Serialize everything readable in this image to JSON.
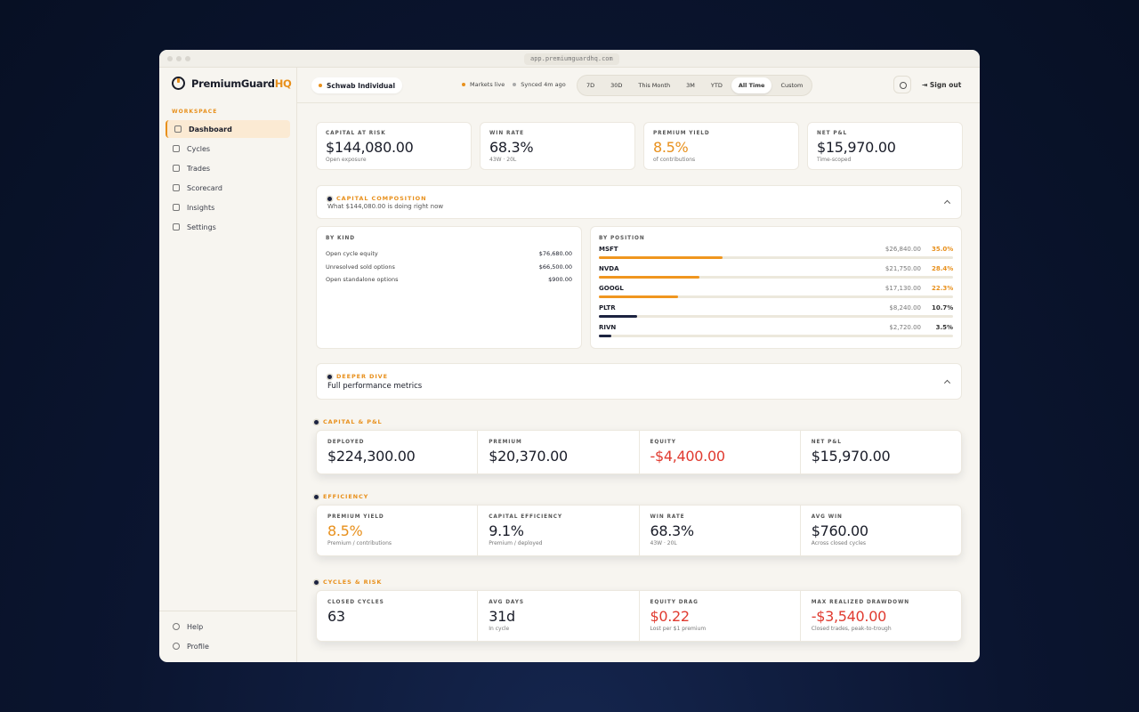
{
  "browser": {
    "url": "app.premiumguardhq.com"
  },
  "brand": {
    "name": "PremiumGuard",
    "suffix": "HQ"
  },
  "sidebar": {
    "section": "WORKSPACE",
    "nav": [
      "Dashboard",
      "Cycles",
      "Trades",
      "Scorecard",
      "Insights",
      "Settings"
    ],
    "active": "Dashboard",
    "footer": [
      "Help",
      "Profile"
    ]
  },
  "topbar": {
    "account": "Schwab Individual",
    "status": "Markets live",
    "synced": "Synced 4m ago",
    "ranges": [
      "7D",
      "30D",
      "This Month",
      "3M",
      "YTD",
      "All Time",
      "Custom"
    ],
    "active_range": "All Time",
    "sign_out": "Sign out"
  },
  "kpis": [
    {
      "label": "CAPITAL AT RISK",
      "value": "$144,080.00",
      "sub": "Open exposure",
      "color": "#1a1d29"
    },
    {
      "label": "WIN RATE",
      "value": "68.3%",
      "sub": "43W · 20L",
      "color": "#1a1d29"
    },
    {
      "label": "PREMIUM YIELD",
      "value": "8.5%",
      "sub": "of contributions",
      "color": "#e8901c"
    },
    {
      "label": "NET P&L",
      "value": "$15,970.00",
      "sub": "Time-scoped",
      "color": "#1a1d29"
    }
  ],
  "composition": {
    "title": "CAPITAL COMPOSITION",
    "subtitle": "What $144,080.00 is doing right now",
    "by_kind": {
      "title": "BY KIND",
      "rows": [
        {
          "label": "Open cycle equity",
          "amount": "$76,680.00"
        },
        {
          "label": "Unresolved sold options",
          "amount": "$66,500.00"
        },
        {
          "label": "Open standalone options",
          "amount": "$900.00"
        }
      ]
    },
    "by_position": {
      "title": "BY POSITION",
      "rows": [
        {
          "ticker": "MSFT",
          "amount": "$26,840.00",
          "pct": 35.0,
          "pct_label": "35.0%",
          "color": "#f0961f"
        },
        {
          "ticker": "NVDA",
          "amount": "$21,750.00",
          "pct": 28.4,
          "pct_label": "28.4%",
          "color": "#f0961f"
        },
        {
          "ticker": "GOOGL",
          "amount": "$17,130.00",
          "pct": 22.3,
          "pct_label": "22.3%",
          "color": "#f0961f"
        },
        {
          "ticker": "PLTR",
          "amount": "$8,240.00",
          "pct": 10.7,
          "pct_label": "10.7%",
          "color": "#1c2340"
        },
        {
          "ticker": "RIVN",
          "amount": "$2,720.00",
          "pct": 3.5,
          "pct_label": "3.5%",
          "color": "#1c2340"
        }
      ]
    }
  },
  "deeper": {
    "title": "DEEPER DIVE",
    "subtitle": "Full performance metrics"
  },
  "sections": [
    {
      "title": "CAPITAL & P&L",
      "cards": [
        {
          "label": "DEPLOYED",
          "value": "$224,300.00",
          "color": "#1a1d29"
        },
        {
          "label": "PREMIUM",
          "value": "$20,370.00",
          "color": "#1a1d29"
        },
        {
          "label": "EQUITY",
          "value": "-$4,400.00",
          "color": "#e03a2f"
        },
        {
          "label": "NET P&L",
          "value": "$15,970.00",
          "color": "#1a1d29"
        }
      ]
    },
    {
      "title": "EFFICIENCY",
      "cards": [
        {
          "label": "PREMIUM YIELD",
          "value": "8.5%",
          "sub": "Premium / contributions",
          "color": "#e8901c"
        },
        {
          "label": "CAPITAL EFFICIENCY",
          "value": "9.1%",
          "sub": "Premium / deployed",
          "color": "#1a1d29"
        },
        {
          "label": "WIN RATE",
          "value": "68.3%",
          "sub": "43W · 20L",
          "color": "#1a1d29"
        },
        {
          "label": "AVG WIN",
          "value": "$760.00",
          "sub": "Across closed cycles",
          "color": "#1a1d29"
        }
      ]
    },
    {
      "title": "CYCLES & RISK",
      "cards": [
        {
          "label": "CLOSED CYCLES",
          "value": "63",
          "color": "#1a1d29"
        },
        {
          "label": "AVG DAYS",
          "value": "31d",
          "sub": "In cycle",
          "color": "#1a1d29"
        },
        {
          "label": "EQUITY DRAG",
          "value": "$0.22",
          "sub": "Lost per $1 premium",
          "color": "#e03a2f"
        },
        {
          "label": "MAX REALIZED DRAWDOWN",
          "value": "-$3,540.00",
          "sub": "Closed trades, peak-to-trough",
          "color": "#e03a2f"
        }
      ]
    }
  ]
}
